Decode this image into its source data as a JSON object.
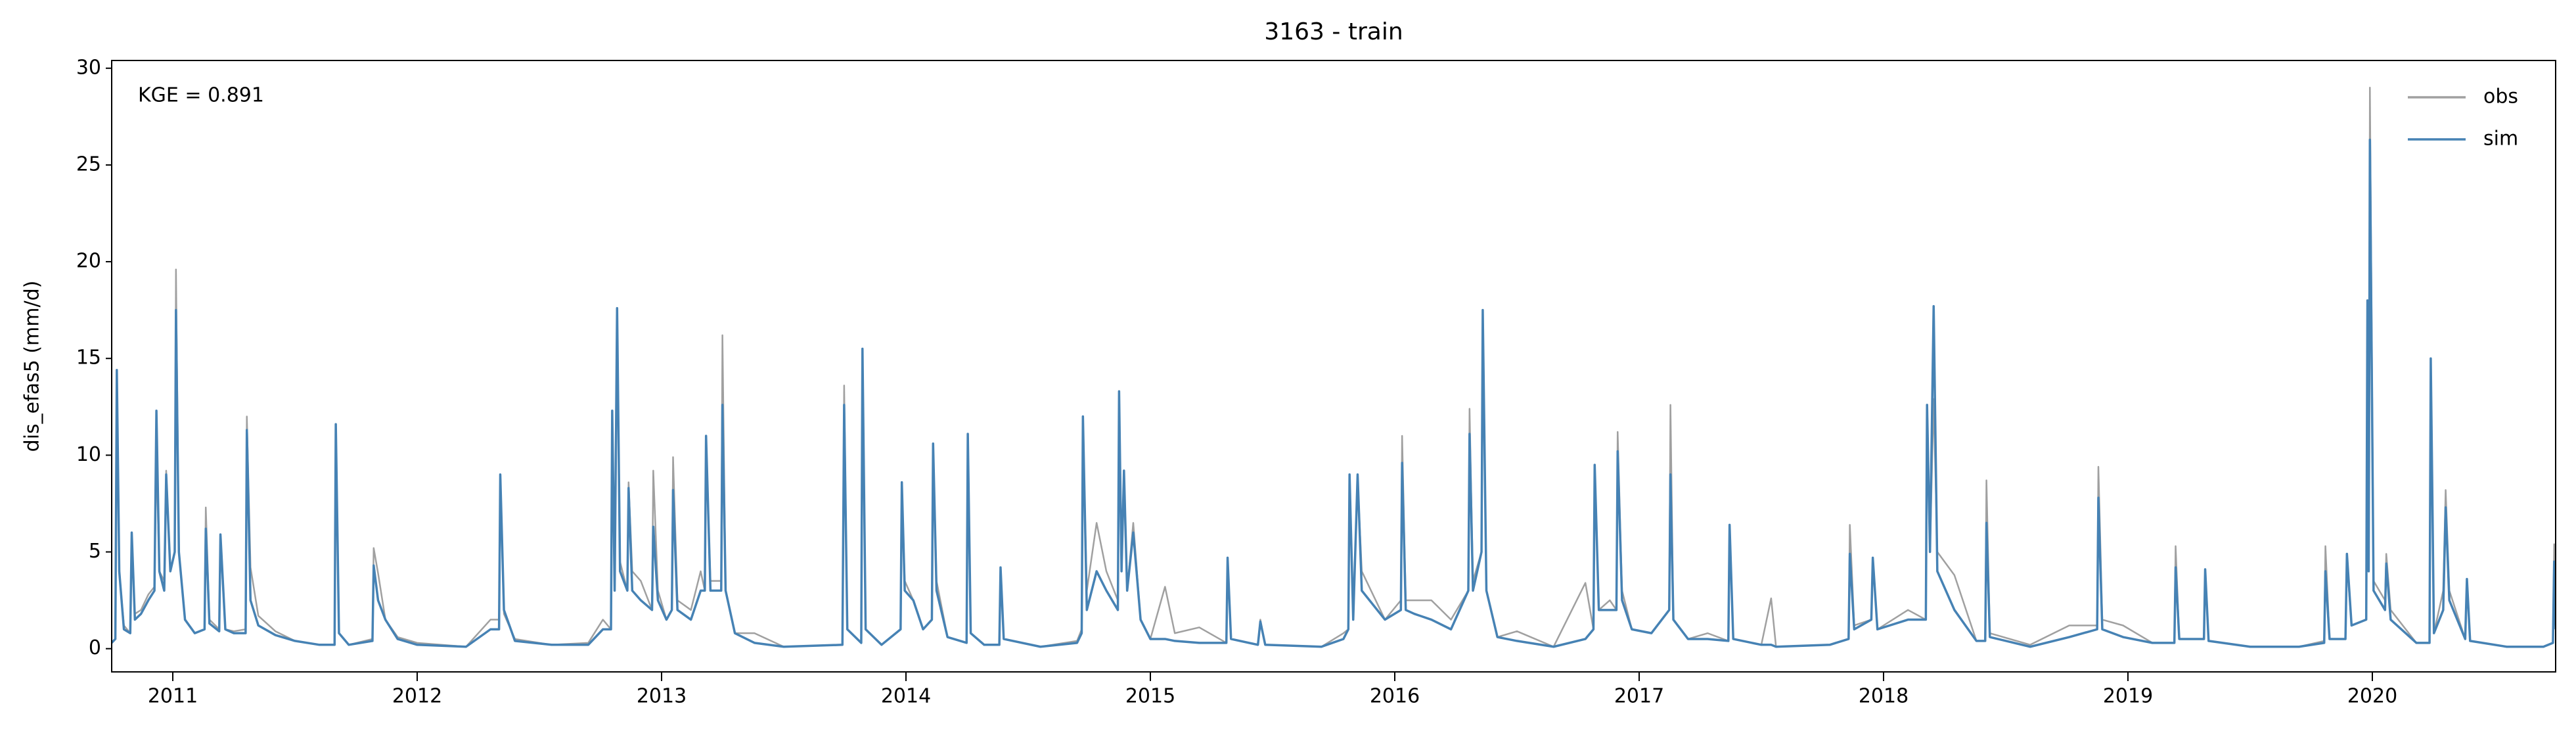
{
  "chart_data": {
    "type": "line",
    "title": "3163 - train",
    "ylabel": "dis_efas5 (mm/d)",
    "annotation": "KGE = 0.891",
    "legend": "upper right",
    "grid": false,
    "xlim": [
      2010.75,
      2020.75
    ],
    "xticks": [
      2011,
      2012,
      2013,
      2014,
      2015,
      2016,
      2017,
      2018,
      2019,
      2020
    ],
    "ylim": [
      -1.2,
      30.4
    ],
    "yticks": [
      0,
      5,
      10,
      15,
      20,
      25,
      30
    ],
    "x": [
      2010.75,
      2010.765,
      2010.771,
      2010.781,
      2010.8,
      2010.826,
      2010.832,
      2010.845,
      2010.87,
      2010.9,
      2010.925,
      2010.933,
      2010.945,
      2010.965,
      2010.973,
      2010.99,
      2011.008,
      2011.013,
      2011.025,
      2011.05,
      2011.09,
      2011.13,
      2011.135,
      2011.15,
      2011.19,
      2011.195,
      2011.215,
      2011.25,
      2011.298,
      2011.303,
      2011.318,
      2011.35,
      2011.42,
      2011.5,
      2011.6,
      2011.662,
      2011.667,
      2011.68,
      2011.72,
      2011.817,
      2011.822,
      2011.84,
      2011.87,
      2011.92,
      2012.0,
      2012.2,
      2012.3,
      2012.335,
      2012.34,
      2012.355,
      2012.4,
      2012.55,
      2012.7,
      2012.76,
      2012.793,
      2012.798,
      2012.808,
      2012.818,
      2012.83,
      2012.86,
      2012.865,
      2012.88,
      2012.915,
      2012.961,
      2012.966,
      2012.985,
      2013.02,
      2013.042,
      2013.047,
      2013.065,
      2013.12,
      2013.16,
      2013.177,
      2013.182,
      2013.2,
      2013.244,
      2013.249,
      2013.262,
      2013.3,
      2013.38,
      2013.5,
      2013.74,
      2013.747,
      2013.76,
      2013.817,
      2013.822,
      2013.835,
      2013.9,
      2013.978,
      2013.983,
      2013.995,
      2014.03,
      2014.07,
      2014.106,
      2014.111,
      2014.125,
      2014.17,
      2014.248,
      2014.253,
      2014.265,
      2014.32,
      2014.382,
      2014.387,
      2014.4,
      2014.55,
      2014.7,
      2014.719,
      2014.724,
      2014.74,
      2014.78,
      2014.82,
      2014.867,
      2014.872,
      2014.882,
      2014.892,
      2014.905,
      2014.93,
      2014.96,
      2015.0,
      2015.06,
      2015.1,
      2015.2,
      2015.311,
      2015.316,
      2015.33,
      2015.44,
      2015.45,
      2015.47,
      2015.7,
      2015.79,
      2015.81,
      2015.815,
      2015.83,
      2015.848,
      2015.865,
      2015.96,
      2016.025,
      2016.03,
      2016.045,
      2016.08,
      2016.15,
      2016.23,
      2016.301,
      2016.306,
      2016.32,
      2016.355,
      2016.36,
      2016.375,
      2016.42,
      2016.5,
      2016.65,
      2016.78,
      2016.813,
      2016.818,
      2016.835,
      2016.88,
      2016.907,
      2016.912,
      2016.93,
      2016.97,
      2017.05,
      2017.123,
      2017.128,
      2017.14,
      2017.2,
      2017.28,
      2017.365,
      2017.37,
      2017.385,
      2017.5,
      2017.54,
      2017.56,
      2017.78,
      2017.857,
      2017.862,
      2017.88,
      2017.95,
      2017.956,
      2017.975,
      2018.1,
      2018.173,
      2018.178,
      2018.19,
      2018.205,
      2018.22,
      2018.29,
      2018.38,
      2018.416,
      2018.421,
      2018.435,
      2018.6,
      2018.76,
      2018.874,
      2018.879,
      2018.895,
      2018.98,
      2019.1,
      2019.19,
      2019.195,
      2019.21,
      2019.311,
      2019.316,
      2019.33,
      2019.5,
      2019.7,
      2019.803,
      2019.808,
      2019.825,
      2019.89,
      2019.896,
      2019.915,
      2019.975,
      2019.98,
      2019.985,
      2019.99,
      2020.005,
      2020.052,
      2020.057,
      2020.075,
      2020.18,
      2020.234,
      2020.239,
      2020.252,
      2020.29,
      2020.3,
      2020.315,
      2020.38,
      2020.387,
      2020.4,
      2020.55,
      2020.7,
      2020.739,
      2020.744,
      2020.75
    ],
    "series": [
      {
        "name": "obs",
        "color": "#a0a0a0",
        "values": [
          0.3,
          0.5,
          13.5,
          4,
          1.2,
          0.8,
          5.5,
          1.8,
          2,
          2.8,
          3.2,
          10,
          4,
          3.5,
          9.2,
          4,
          5,
          19.6,
          5,
          1.5,
          0.8,
          1,
          7.3,
          1.5,
          1,
          5.5,
          1,
          0.9,
          1,
          12,
          4.2,
          1.7,
          0.9,
          0.4,
          0.2,
          0.2,
          11.4,
          0.8,
          0.2,
          0.5,
          5.2,
          3.9,
          1.5,
          0.6,
          0.3,
          0.1,
          1.5,
          1.5,
          8.5,
          1.8,
          0.5,
          0.2,
          0.3,
          1.5,
          1,
          11.5,
          3,
          17,
          4.5,
          3,
          8.6,
          4,
          3.5,
          2,
          9.2,
          3,
          1.5,
          2,
          9.9,
          2.5,
          2,
          4,
          3,
          10.5,
          3.5,
          3.5,
          16.2,
          3,
          0.8,
          0.8,
          0.1,
          0.2,
          13.6,
          1,
          0.3,
          15.3,
          1,
          0.2,
          1,
          8.3,
          3.5,
          2.5,
          1,
          1.5,
          10.5,
          3.5,
          0.6,
          0.3,
          10.5,
          0.8,
          0.2,
          0.2,
          4,
          0.5,
          0.1,
          0.4,
          1,
          11.5,
          3,
          6.5,
          4,
          2.5,
          12.8,
          4,
          8.5,
          3,
          6.5,
          1.5,
          0.5,
          3.2,
          0.8,
          1.1,
          0.3,
          4.5,
          0.5,
          0.2,
          1.5,
          0.2,
          0.1,
          0.8,
          1,
          8.5,
          2,
          8.8,
          4,
          1.5,
          2.5,
          11,
          2.5,
          2.5,
          2.5,
          1.5,
          3,
          12.4,
          3.5,
          5,
          17,
          3,
          0.6,
          0.9,
          0.1,
          3.4,
          1,
          9.3,
          2,
          2.5,
          2,
          11.2,
          3,
          1,
          0.8,
          2,
          12.6,
          1.5,
          0.5,
          0.8,
          0.4,
          6.2,
          0.5,
          0.2,
          2.6,
          0.1,
          0.2,
          0.5,
          6.4,
          1.2,
          1.5,
          4.5,
          1,
          2,
          1.5,
          12.5,
          5,
          12.9,
          5,
          3.8,
          0.4,
          0.4,
          8.7,
          0.8,
          0.2,
          1.2,
          1.2,
          9.4,
          1.5,
          1.2,
          0.3,
          0.3,
          5.3,
          0.5,
          0.5,
          4,
          0.4,
          0.1,
          0.1,
          0.4,
          5.3,
          0.5,
          0.5,
          4.5,
          1.2,
          1.5,
          17.5,
          4,
          29,
          3.5,
          2.5,
          4.9,
          2,
          0.3,
          0.3,
          14.8,
          0.8,
          3,
          8.2,
          3,
          0.5,
          3.5,
          0.4,
          0.1,
          0.1,
          0.3,
          5.4,
          1.5
        ]
      },
      {
        "name": "sim",
        "color": "#4682b4",
        "values": [
          0.3,
          0.5,
          14.4,
          4,
          1,
          0.8,
          6,
          1.5,
          1.8,
          2.5,
          3,
          12.3,
          4,
          3,
          9,
          4,
          5,
          17.5,
          5,
          1.5,
          0.8,
          1,
          6.2,
          1.3,
          0.9,
          5.9,
          1,
          0.8,
          0.8,
          11.3,
          2.5,
          1.2,
          0.7,
          0.4,
          0.2,
          0.2,
          11.6,
          0.8,
          0.2,
          0.4,
          4.3,
          2.5,
          1.5,
          0.5,
          0.2,
          0.1,
          1,
          1,
          9,
          2,
          0.4,
          0.2,
          0.2,
          1,
          1,
          12.3,
          3,
          17.6,
          4,
          3,
          8.3,
          3,
          2.5,
          2,
          6.3,
          2.5,
          1.5,
          2,
          8.2,
          2,
          1.5,
          3,
          3,
          11,
          3,
          3,
          12.6,
          3,
          0.8,
          0.3,
          0.1,
          0.2,
          12.6,
          1,
          0.3,
          15.5,
          1,
          0.2,
          1,
          8.6,
          3,
          2.5,
          1,
          1.5,
          10.6,
          3,
          0.6,
          0.3,
          11.1,
          0.8,
          0.2,
          0.2,
          4.2,
          0.5,
          0.1,
          0.3,
          0.8,
          12,
          2,
          4,
          3,
          2,
          13.3,
          4,
          9.2,
          3,
          6,
          1.5,
          0.5,
          0.5,
          0.4,
          0.3,
          0.3,
          4.7,
          0.5,
          0.2,
          1.4,
          0.2,
          0.1,
          0.5,
          1,
          9,
          1.5,
          9,
          3,
          1.5,
          2,
          9.6,
          2,
          1.8,
          1.5,
          1,
          3,
          11.1,
          3,
          5,
          17.5,
          3,
          0.6,
          0.4,
          0.1,
          0.5,
          1,
          9.5,
          2,
          2,
          2,
          10.2,
          2.5,
          1,
          0.8,
          2,
          9,
          1.5,
          0.5,
          0.5,
          0.4,
          6.4,
          0.5,
          0.2,
          0.2,
          0.1,
          0.2,
          0.5,
          4.9,
          1,
          1.5,
          4.7,
          1,
          1.5,
          1.5,
          12.6,
          5,
          17.7,
          4,
          2,
          0.4,
          0.4,
          6.5,
          0.6,
          0.1,
          0.6,
          1,
          7.8,
          1,
          0.6,
          0.3,
          0.3,
          4.2,
          0.5,
          0.5,
          4.1,
          0.4,
          0.1,
          0.1,
          0.3,
          4,
          0.5,
          0.5,
          4.9,
          1.2,
          1.5,
          18,
          4,
          26.3,
          3,
          2,
          4.4,
          1.5,
          0.3,
          0.3,
          15,
          0.8,
          2,
          7.3,
          2.5,
          0.5,
          3.6,
          0.4,
          0.1,
          0.1,
          0.3,
          4.5,
          1
        ]
      }
    ]
  }
}
